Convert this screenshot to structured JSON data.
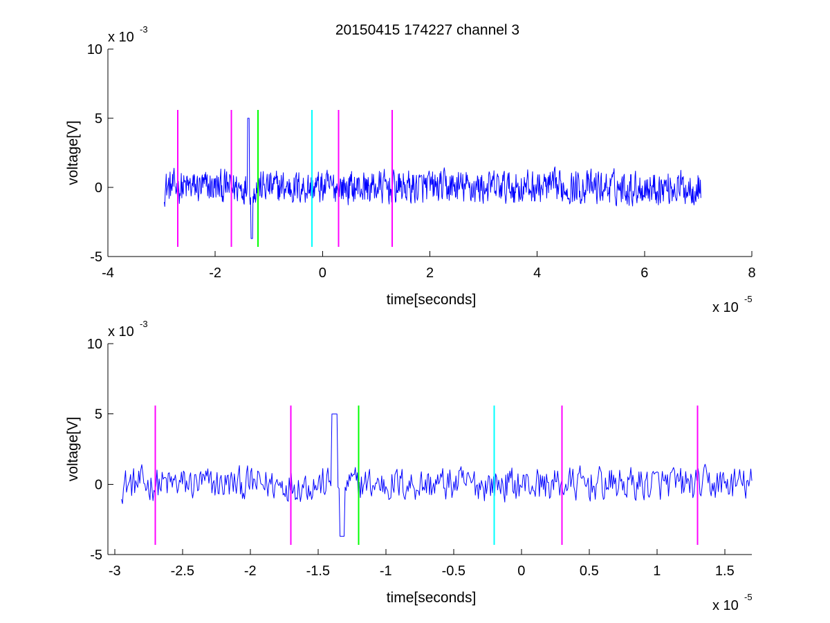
{
  "figure": {
    "title": "20150415 174227 channel 3"
  },
  "chart_data": [
    {
      "type": "line",
      "title": "20150415 174227 channel 3",
      "xlabel": "time[seconds]",
      "ylabel": "voltage[V]",
      "x_multiplier": "x 10",
      "x_exponent": "-5",
      "y_multiplier": "x 10",
      "y_exponent": "-3",
      "xlim": [
        -4,
        8
      ],
      "ylim": [
        -5,
        10
      ],
      "xticks": [
        -4,
        -2,
        0,
        2,
        4,
        6,
        8
      ],
      "xtick_labels": [
        "-4",
        "-2",
        "0",
        "2",
        "4",
        "6",
        "8"
      ],
      "yticks": [
        -5,
        0,
        5,
        10
      ],
      "ytick_labels": [
        "-5",
        "0",
        "5",
        "10"
      ],
      "grid": false,
      "signal": {
        "color": "#0000ff",
        "x_start": -2.95,
        "x_end": 7.05,
        "y_min": -3.7,
        "y_max": 5.0,
        "noise_amplitude_approx": 1.0
      },
      "markers": [
        {
          "x": -2.7,
          "color": "#ff00ff"
        },
        {
          "x": -1.7,
          "color": "#ff00ff"
        },
        {
          "x": -1.2,
          "color": "#00ff00"
        },
        {
          "x": -0.2,
          "color": "#00ffff"
        },
        {
          "x": 0.3,
          "color": "#ff00ff"
        },
        {
          "x": 1.3,
          "color": "#ff00ff"
        }
      ],
      "marker_y_range": [
        -4.3,
        5.6
      ]
    },
    {
      "type": "line",
      "xlabel": "time[seconds]",
      "ylabel": "voltage[V]",
      "x_multiplier": "x 10",
      "x_exponent": "-5",
      "y_multiplier": "x 10",
      "y_exponent": "-3",
      "xlim": [
        -3.05,
        1.7
      ],
      "ylim": [
        -5,
        10
      ],
      "xticks": [
        -3,
        -2.5,
        -2,
        -1.5,
        -1,
        -0.5,
        0,
        0.5,
        1,
        1.5
      ],
      "xtick_labels": [
        "-3",
        "-2.5",
        "-2",
        "-1.5",
        "-1",
        "-0.5",
        "0",
        "0.5",
        "1",
        "1.5"
      ],
      "yticks": [
        -5,
        0,
        5,
        10
      ],
      "ytick_labels": [
        "-5",
        "0",
        "5",
        "10"
      ],
      "grid": false,
      "signal": {
        "color": "#0000ff",
        "x_start": -2.95,
        "x_end": 1.7,
        "y_min": -3.7,
        "y_max": 5.0,
        "noise_amplitude_approx": 1.0
      },
      "markers": [
        {
          "x": -2.7,
          "color": "#ff00ff"
        },
        {
          "x": -1.7,
          "color": "#ff00ff"
        },
        {
          "x": -1.2,
          "color": "#00ff00"
        },
        {
          "x": -0.2,
          "color": "#00ffff"
        },
        {
          "x": 0.3,
          "color": "#ff00ff"
        },
        {
          "x": 1.3,
          "color": "#ff00ff"
        }
      ],
      "marker_y_range": [
        -4.3,
        5.6
      ]
    }
  ]
}
